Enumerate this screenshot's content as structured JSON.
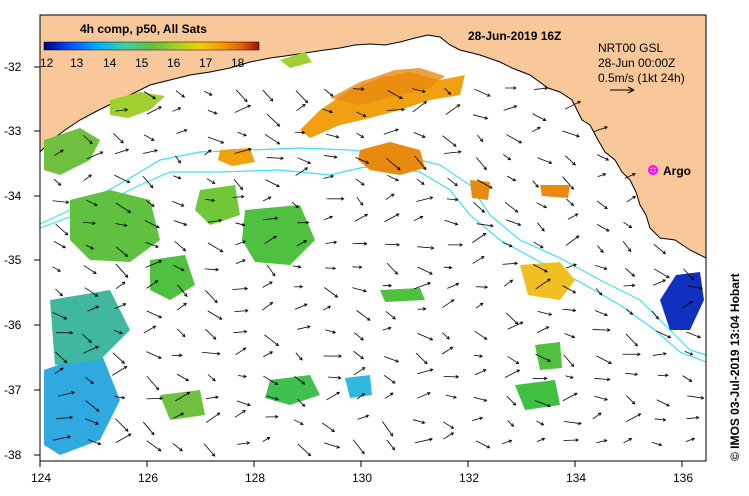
{
  "map": {
    "title": "4h comp, p50, All Sats",
    "date": "28-Jun-2019 16Z",
    "colorbar": {
      "ticks": [
        "12",
        "13",
        "14",
        "15",
        "16",
        "17",
        "18"
      ],
      "colors": [
        "#000080",
        "#0050ff",
        "#00b0ff",
        "#40d0a0",
        "#60c040",
        "#a8d020",
        "#f0d000",
        "#f8a000",
        "#e06000",
        "#a01000"
      ]
    },
    "current_info": {
      "line1": "NRT00 GSL",
      "line2": "28-Jun 00:00Z",
      "scale": "0.5m/s (1kt 24h)"
    },
    "argo_label": "Argo",
    "credit": "© IMOS 03-Jul-2019 13:04 Hobart",
    "x_axis": {
      "labels": [
        "124",
        "126",
        "128",
        "130",
        "132",
        "134",
        "136"
      ]
    },
    "y_axis": {
      "labels": [
        "-32",
        "-33",
        "-34",
        "-35",
        "-36",
        "-37",
        "-38"
      ]
    },
    "colors": {
      "land": "#f8c89a",
      "coast": "#000000",
      "isobath": "#40e0f0",
      "argo": "#ff00ff"
    }
  }
}
